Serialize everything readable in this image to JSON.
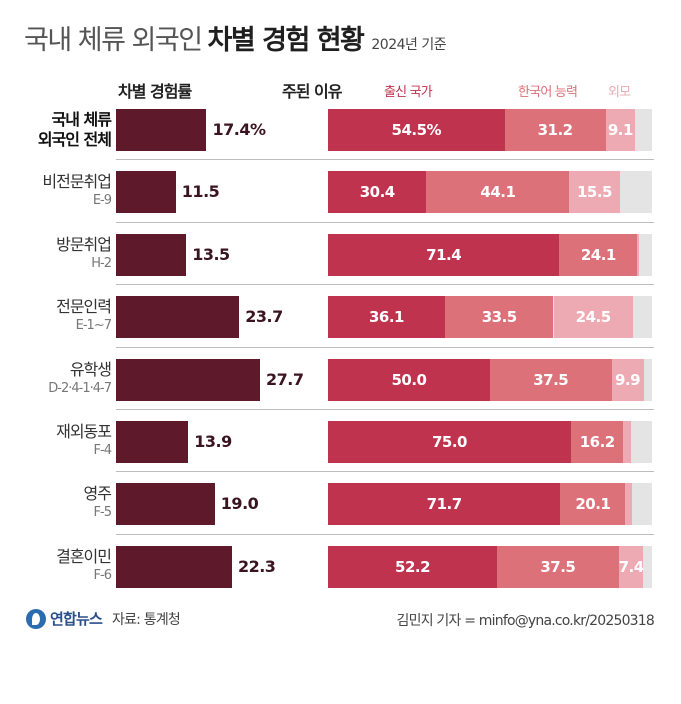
{
  "title": {
    "light": "국내 체류 외국인",
    "bold": "차별 경험 현황",
    "sub": "2024년 기준"
  },
  "headers": {
    "rate": "차별 경험률",
    "reason": "주된 이유"
  },
  "legend": [
    {
      "name": "출신 국가",
      "color": "#c0334f"
    },
    {
      "name": "한국어 능력",
      "color": "#dd7179"
    },
    {
      "name": "외모",
      "color": "#eeaab2"
    }
  ],
  "colors": {
    "rate_bar": "#5e1a2b",
    "rest": "#e4e4e4"
  },
  "chart_data": [
    {
      "type": "bar",
      "title": "차별 경험률",
      "unit": "%",
      "xlim": [
        0,
        30
      ],
      "categories": [
        "국내 체류 외국인 전체",
        "비전문취업 E-9",
        "방문취업 H-2",
        "전문인력 E-1~7",
        "유학생 D-2·4-1·4-7",
        "재외동포 F-4",
        "영주 F-5",
        "결혼이민 F-6"
      ],
      "values": [
        17.4,
        11.5,
        13.5,
        23.7,
        27.7,
        13.9,
        19.0,
        22.3
      ],
      "value_labels": [
        "17.4%",
        "11.5",
        "13.5",
        "23.7",
        "27.7",
        "13.9",
        "19.0",
        "22.3"
      ]
    },
    {
      "type": "bar",
      "stacked": true,
      "orientation": "horizontal",
      "title": "주된 이유",
      "unit": "%",
      "xlim": [
        0,
        100
      ],
      "categories": [
        "국내 체류 외국인 전체",
        "비전문취업 E-9",
        "방문취업 H-2",
        "전문인력 E-1~7",
        "유학생 D-2·4-1·4-7",
        "재외동포 F-4",
        "영주 F-5",
        "결혼이민 F-6"
      ],
      "series": [
        {
          "name": "출신 국가",
          "values": [
            54.5,
            30.4,
            71.4,
            36.1,
            50.0,
            75.0,
            71.7,
            52.2
          ],
          "labels": [
            "54.5%",
            "30.4",
            "71.4",
            "36.1",
            "50.0",
            "75.0",
            "71.7",
            "52.2"
          ]
        },
        {
          "name": "한국어 능력",
          "values": [
            31.2,
            44.1,
            24.1,
            33.5,
            37.5,
            16.2,
            20.1,
            37.5
          ],
          "labels": [
            "31.2",
            "44.1",
            "24.1",
            "33.5",
            "37.5",
            "16.2",
            "20.1",
            "37.5"
          ]
        },
        {
          "name": "외모",
          "values": [
            9.1,
            15.5,
            0.6,
            24.5,
            9.9,
            2.4,
            2.0,
            7.4
          ],
          "labels": [
            "9.1",
            "15.5",
            "",
            "24.5",
            "9.9",
            "",
            "",
            "7.4"
          ]
        }
      ]
    }
  ],
  "rows": [
    {
      "name": "국내 체류 외국인 전체",
      "line1": "국내 체류",
      "line2": "외국인 전체"
    },
    {
      "name": "비전문취업",
      "line1": "비전문취업",
      "line2": "E-9"
    },
    {
      "name": "방문취업",
      "line1": "방문취업",
      "line2": "H-2"
    },
    {
      "name": "전문인력",
      "line1": "전문인력",
      "line2": "E-1~7"
    },
    {
      "name": "유학생",
      "line1": "유학생",
      "line2": "D-2·4-1·4-7"
    },
    {
      "name": "재외동포",
      "line1": "재외동포",
      "line2": "F-4"
    },
    {
      "name": "영주",
      "line1": "영주",
      "line2": "F-5"
    },
    {
      "name": "결혼이민",
      "line1": "결혼이민",
      "line2": "F-6"
    }
  ],
  "footer": {
    "logo": "연합뉴스",
    "source": "자료: 통계청",
    "credit": "김민지 기자 = minfo@yna.co.kr/20250318"
  }
}
